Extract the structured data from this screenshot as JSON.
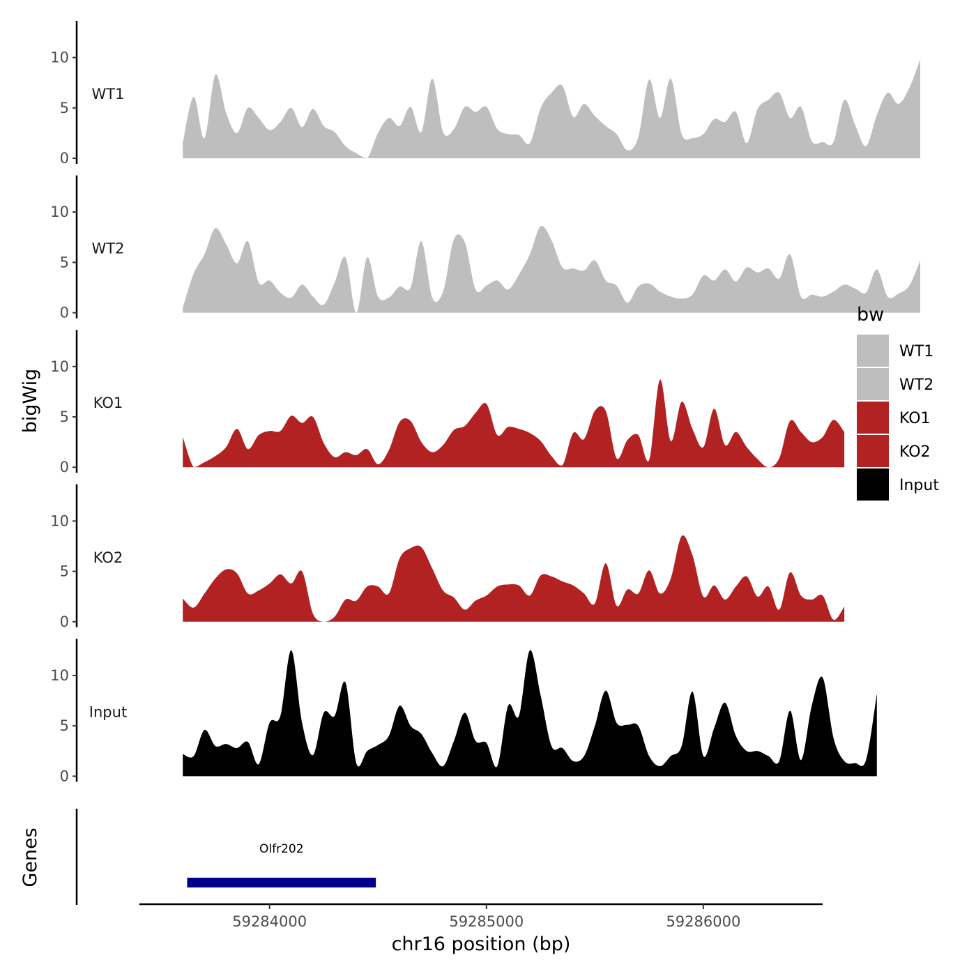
{
  "chart_data": {
    "type": "area",
    "ylabel": "bigWig",
    "xlabel": "chr16 position (bp)",
    "genes_label": "Genes",
    "xlim": [
      59283400,
      59286550
    ],
    "ylim": [
      0,
      13.5
    ],
    "x_ticks": [
      59284000,
      59285000,
      59286000
    ],
    "x_tick_labels": [
      "59284000",
      "59285000",
      "59286000"
    ],
    "y_ticks": [
      0,
      5,
      10
    ],
    "y_tick_labels": [
      "0",
      "5",
      "10"
    ],
    "legend": {
      "title": "bw",
      "position": "right",
      "entries": [
        {
          "label": "WT1",
          "color": "#bebebe"
        },
        {
          "label": "WT2",
          "color": "#bebebe"
        },
        {
          "label": "KO1",
          "color": "#b22222"
        },
        {
          "label": "KO2",
          "color": "#b22222"
        },
        {
          "label": "Input",
          "color": "#000000"
        }
      ]
    },
    "x_start": 59283600,
    "x_step": 50,
    "series": [
      {
        "name": "WT1",
        "color": "#bebebe",
        "values": [
          1.5,
          6.1,
          2.0,
          8.3,
          4.5,
          2.5,
          5.0,
          4.0,
          2.8,
          3.6,
          5.0,
          3.1,
          4.9,
          3.2,
          2.6,
          1.2,
          0.5,
          0.0,
          2.5,
          4.0,
          3.2,
          5.1,
          2.6,
          7.9,
          2.6,
          2.9,
          5.1,
          4.6,
          5.1,
          2.9,
          2.4,
          2.3,
          1.5,
          5.0,
          6.5,
          7.2,
          4.1,
          5.4,
          4.2,
          3.2,
          2.4,
          0.8,
          2.1,
          7.8,
          4.0,
          7.9,
          2.4,
          2.0,
          2.4,
          3.9,
          3.6,
          4.6,
          1.5,
          4.9,
          5.8,
          6.5,
          4.0,
          5.1,
          1.7,
          1.6,
          1.6,
          5.8,
          3.3,
          1.2,
          4.3,
          6.5,
          5.4,
          7.0,
          9.8
        ]
      },
      {
        "name": "WT2",
        "color": "#bebebe",
        "values": [
          0.5,
          3.9,
          5.8,
          8.4,
          6.8,
          4.9,
          7.1,
          3.0,
          3.2,
          2.0,
          1.5,
          2.8,
          1.6,
          0.8,
          3.0,
          5.5,
          0.0,
          5.5,
          1.6,
          1.5,
          2.6,
          2.5,
          7.1,
          1.5,
          2.1,
          7.3,
          7.0,
          2.3,
          2.7,
          3.2,
          2.3,
          3.8,
          5.8,
          8.6,
          7.2,
          4.5,
          4.4,
          4.2,
          5.2,
          3.2,
          2.7,
          1.0,
          2.6,
          2.9,
          2.1,
          1.6,
          1.4,
          1.8,
          3.7,
          3.2,
          4.3,
          3.1,
          4.5,
          4.0,
          4.4,
          3.4,
          5.8,
          1.6,
          1.8,
          1.6,
          2.1,
          2.8,
          2.4,
          2.0,
          4.3,
          1.6,
          1.9,
          2.7,
          5.2
        ]
      },
      {
        "name": "KO1",
        "color": "#b22222",
        "values": [
          3.0,
          0.0,
          0.5,
          1.1,
          2.0,
          3.8,
          1.8,
          3.2,
          3.6,
          3.6,
          5.1,
          4.4,
          5.0,
          2.4,
          1.0,
          1.5,
          1.2,
          1.8,
          0.3,
          1.7,
          4.5,
          4.6,
          2.5,
          1.5,
          2.2,
          3.7,
          4.1,
          5.4,
          6.3,
          3.2,
          4.0,
          3.8,
          3.4,
          2.6,
          1.1,
          0.2,
          3.4,
          2.8,
          5.6,
          5.6,
          0.9,
          2.7,
          3.2,
          0.7,
          8.7,
          2.6,
          6.5,
          3.8,
          2.0,
          5.8,
          2.2,
          3.5,
          2.0,
          0.8,
          0.0,
          0.9,
          4.6,
          3.5,
          2.5,
          3.0,
          4.7,
          3.5
        ]
      },
      {
        "name": "KO2",
        "color": "#b22222",
        "values": [
          2.3,
          1.4,
          2.8,
          4.3,
          5.2,
          4.8,
          2.8,
          3.1,
          3.8,
          4.7,
          3.8,
          5.0,
          0.8,
          0.0,
          0.5,
          2.2,
          2.1,
          3.5,
          3.5,
          2.8,
          6.3,
          7.3,
          7.4,
          5.3,
          3.1,
          2.4,
          1.2,
          2.1,
          2.6,
          3.5,
          3.7,
          3.6,
          2.6,
          4.6,
          4.5,
          4.0,
          3.6,
          2.8,
          1.8,
          5.8,
          1.6,
          3.2,
          2.8,
          5.1,
          2.8,
          4.3,
          8.5,
          6.6,
          2.5,
          3.6,
          2.2,
          3.5,
          4.5,
          2.5,
          3.5,
          1.2,
          4.9,
          2.6,
          2.2,
          2.6,
          0.2,
          1.5
        ]
      },
      {
        "name": "Input",
        "color": "#000000",
        "values": [
          2.2,
          2.0,
          4.6,
          3.0,
          3.2,
          2.8,
          3.4,
          1.2,
          5.3,
          6.0,
          12.5,
          5.3,
          2.1,
          6.3,
          6.0,
          9.3,
          1.3,
          2.5,
          3.1,
          4.0,
          7.0,
          5.0,
          4.2,
          2.3,
          1.0,
          3.5,
          6.3,
          3.5,
          3.3,
          1.0,
          7.0,
          6.0,
          12.5,
          8.0,
          3.0,
          2.8,
          1.5,
          2.0,
          5.0,
          8.5,
          5.3,
          5.1,
          5.0,
          2.0,
          1.0,
          2.0,
          3.0,
          8.4,
          2.0,
          4.8,
          7.3,
          4.0,
          2.5,
          2.5,
          2.0,
          1.5,
          6.5,
          1.6,
          7.0,
          9.8,
          3.8,
          1.5,
          1.3,
          1.6,
          8.2
        ]
      }
    ],
    "genes": [
      {
        "name": "Olfr202",
        "start": 59283620,
        "end": 59284490,
        "color": "#00008b"
      }
    ]
  }
}
